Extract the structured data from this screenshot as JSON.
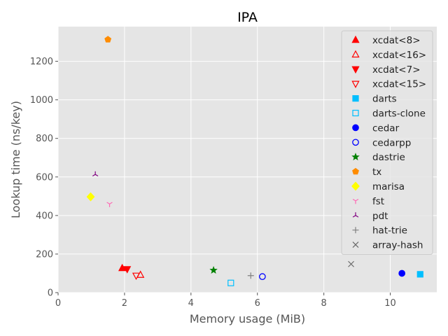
{
  "chart_data": {
    "type": "scatter",
    "title": "IPA",
    "xlabel": "Memory usage (MiB)",
    "ylabel": "Lookup time (ns/key)",
    "xlim": [
      0,
      11.4
    ],
    "ylim": [
      0,
      1380
    ],
    "xticks": [
      "0",
      "2",
      "4",
      "6",
      "8",
      "10"
    ],
    "yticks": [
      "0",
      "200",
      "400",
      "600",
      "800",
      "1000",
      "1200"
    ],
    "grid": true,
    "legend_position": "upper-right",
    "series": [
      {
        "name": "xcdat<8>",
        "marker": "triangle-up",
        "filled": true,
        "color": "#ff0000",
        "points": [
          [
            1.93,
            127
          ]
        ]
      },
      {
        "name": "xcdat<16>",
        "marker": "triangle-up",
        "filled": false,
        "color": "#ff0000",
        "points": [
          [
            2.48,
            92
          ]
        ]
      },
      {
        "name": "xcdat<7>",
        "marker": "triangle-down",
        "filled": true,
        "color": "#ff0000",
        "points": [
          [
            2.08,
            122
          ]
        ]
      },
      {
        "name": "xcdat<15>",
        "marker": "triangle-down",
        "filled": false,
        "color": "#ff0000",
        "points": [
          [
            2.35,
            88
          ]
        ]
      },
      {
        "name": "darts",
        "marker": "square",
        "filled": true,
        "color": "#00bfff",
        "points": [
          [
            10.9,
            95
          ]
        ]
      },
      {
        "name": "darts-clone",
        "marker": "square",
        "filled": false,
        "color": "#00bfff",
        "points": [
          [
            5.2,
            50
          ]
        ]
      },
      {
        "name": "cedar",
        "marker": "circle",
        "filled": true,
        "color": "#0000ff",
        "points": [
          [
            10.35,
            100
          ]
        ]
      },
      {
        "name": "cedarpp",
        "marker": "circle",
        "filled": false,
        "color": "#0000ff",
        "points": [
          [
            6.15,
            83
          ]
        ]
      },
      {
        "name": "dastrie",
        "marker": "star",
        "filled": true,
        "color": "#008000",
        "points": [
          [
            4.68,
            116
          ]
        ]
      },
      {
        "name": "tx",
        "marker": "pentagon",
        "filled": true,
        "color": "#ff8c00",
        "points": [
          [
            1.5,
            1313
          ]
        ]
      },
      {
        "name": "marisa",
        "marker": "diamond",
        "filled": true,
        "color": "#ffff00",
        "points": [
          [
            0.98,
            497
          ]
        ]
      },
      {
        "name": "fst",
        "marker": "tri-down",
        "filled": true,
        "color": "#ff69b4",
        "points": [
          [
            1.55,
            460
          ]
        ]
      },
      {
        "name": "pdt",
        "marker": "tri-up",
        "filled": true,
        "color": "#800080",
        "points": [
          [
            1.12,
            613
          ]
        ]
      },
      {
        "name": "hat-trie",
        "marker": "plus",
        "filled": true,
        "color": "#808080",
        "points": [
          [
            5.8,
            88
          ]
        ]
      },
      {
        "name": "array-hash",
        "marker": "x",
        "filled": true,
        "color": "#696969",
        "points": [
          [
            8.82,
            148
          ]
        ]
      }
    ]
  }
}
